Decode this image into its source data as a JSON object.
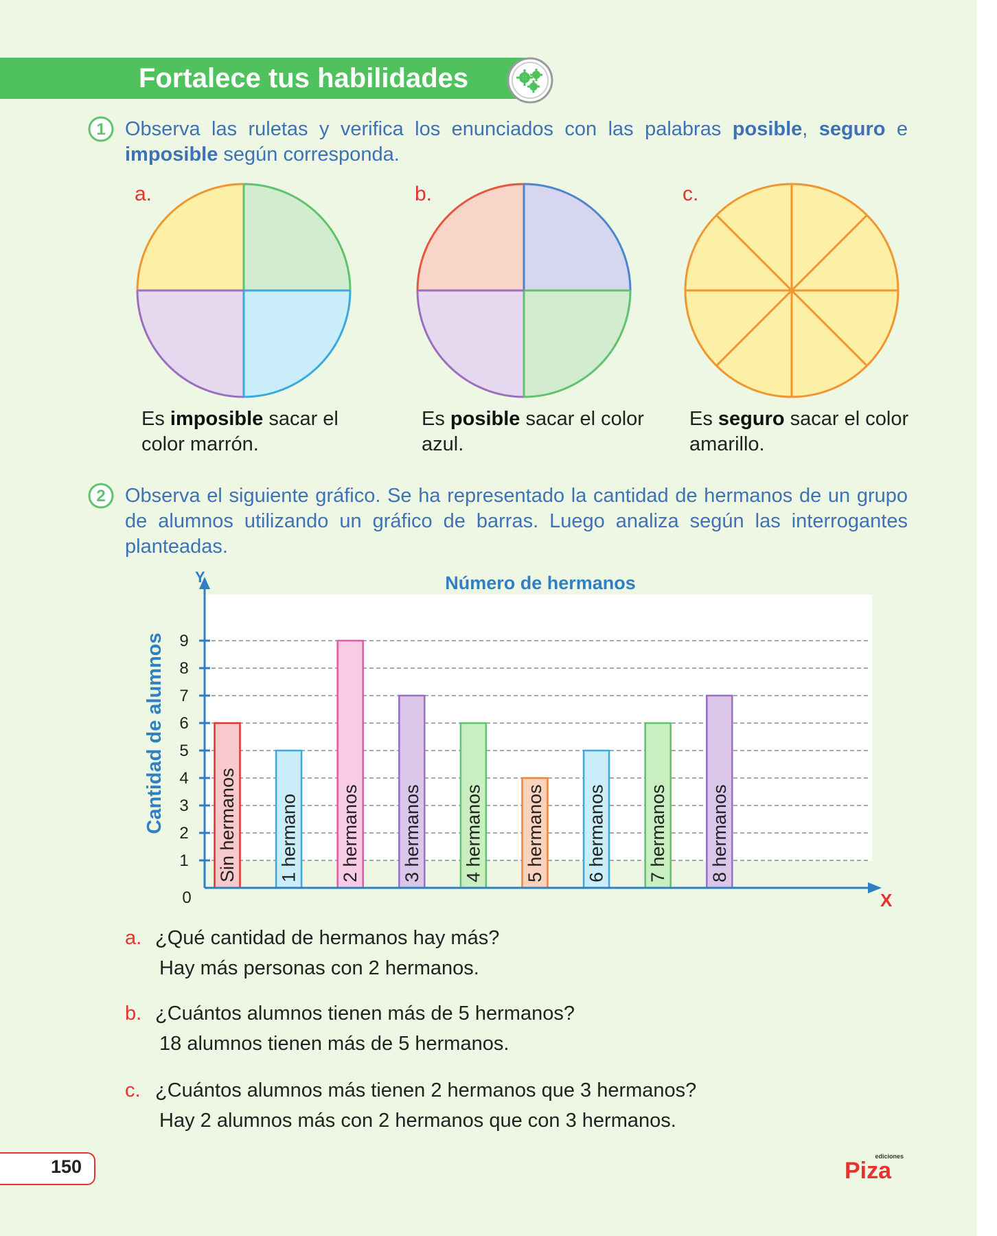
{
  "header": {
    "title": "Fortalece tus habilidades",
    "icon": "gears-icon"
  },
  "exercise1": {
    "number": "1",
    "intro_pre": "Observa las ruletas y verifica los enunciados con las palabras ",
    "word_posible": "posible",
    "comma": ",",
    "word_seguro": "seguro",
    "conj_e": " e ",
    "word_imposible": "imposible",
    "intro_post": " según corresponda.",
    "wheels": [
      {
        "letter": "a.",
        "pre": "Es ",
        "bold": "imposible",
        "post": " sacar el color marrón.",
        "colors": [
          "#fdf0a6",
          "#d2ecd0",
          "#e6d8ef",
          "#c9edf9"
        ],
        "strokes": [
          "#f0962e",
          "#60c26f",
          "#9b6fbf",
          "#3aa9de"
        ]
      },
      {
        "letter": "b.",
        "pre": "Es ",
        "bold": "posible",
        "post": " sacar el color azul.",
        "colors": [
          "#f8d5c8",
          "#d6d6f0",
          "#e6d8ef",
          "#d2ecd0"
        ],
        "strokes": [
          "#e8553f",
          "#4d85cc",
          "#9b6fbf",
          "#60c26f"
        ]
      },
      {
        "letter": "c.",
        "pre": "Es ",
        "bold": "seguro",
        "post": " sacar el color amarillo.",
        "colors": [
          "#fdf0a6"
        ],
        "strokes": [
          "#f0962e"
        ]
      }
    ]
  },
  "exercise2": {
    "number": "2",
    "intro": "Observa el siguiente gráfico. Se ha representado la cantidad de hermanos de un grupo de alumnos utilizando un gráfico de barras. Luego analiza según las interrogantes planteadas."
  },
  "chart_data": {
    "type": "bar",
    "title": "Número de hermanos",
    "ylabel": "Cantidad de alumnos",
    "y_axis_letter": "Y",
    "x_axis_letter": "X",
    "ylim": [
      0,
      9
    ],
    "yticks": [
      "0",
      "1",
      "2",
      "3",
      "4",
      "5",
      "6",
      "7",
      "8",
      "9"
    ],
    "categories": [
      "Sin hermanos",
      "1 hermano",
      "2 hermanos",
      "3 hermanos",
      "4 hermanos",
      "5 hermanos",
      "6 hermanos",
      "7 hermanos",
      "8 hermanos"
    ],
    "values": [
      6,
      5,
      9,
      7,
      6,
      4,
      5,
      6,
      7
    ],
    "fills": [
      "#f8c9cc",
      "#c9edf9",
      "#f9cce5",
      "#d9c6e8",
      "#c9eec0",
      "#fbd2bd",
      "#c9edf9",
      "#c9eec0",
      "#d9c6e8"
    ],
    "strokes": [
      "#e8322d",
      "#3aa9de",
      "#e15aa6",
      "#9b6fbf",
      "#60c26f",
      "#f0833a",
      "#3aa9de",
      "#60c26f",
      "#9b6fbf"
    ],
    "grid": true
  },
  "questions": [
    {
      "letter": "a.",
      "question": "¿Qué cantidad de hermanos hay más?",
      "answer": "Hay más personas con 2 hermanos."
    },
    {
      "letter": "b.",
      "question": "¿Cuántos alumnos tienen más de 5 hermanos?",
      "answer": "18 alumnos tienen más de 5 hermanos."
    },
    {
      "letter": "c.",
      "question": "¿Cuántos alumnos más tienen 2 hermanos que 3 hermanos?",
      "answer": "Hay 2 alumnos más con 2 hermanos que con 3 hermanos."
    }
  ],
  "footer": {
    "page_number": "150",
    "publisher_small": "ediciones",
    "publisher": "Piza"
  }
}
